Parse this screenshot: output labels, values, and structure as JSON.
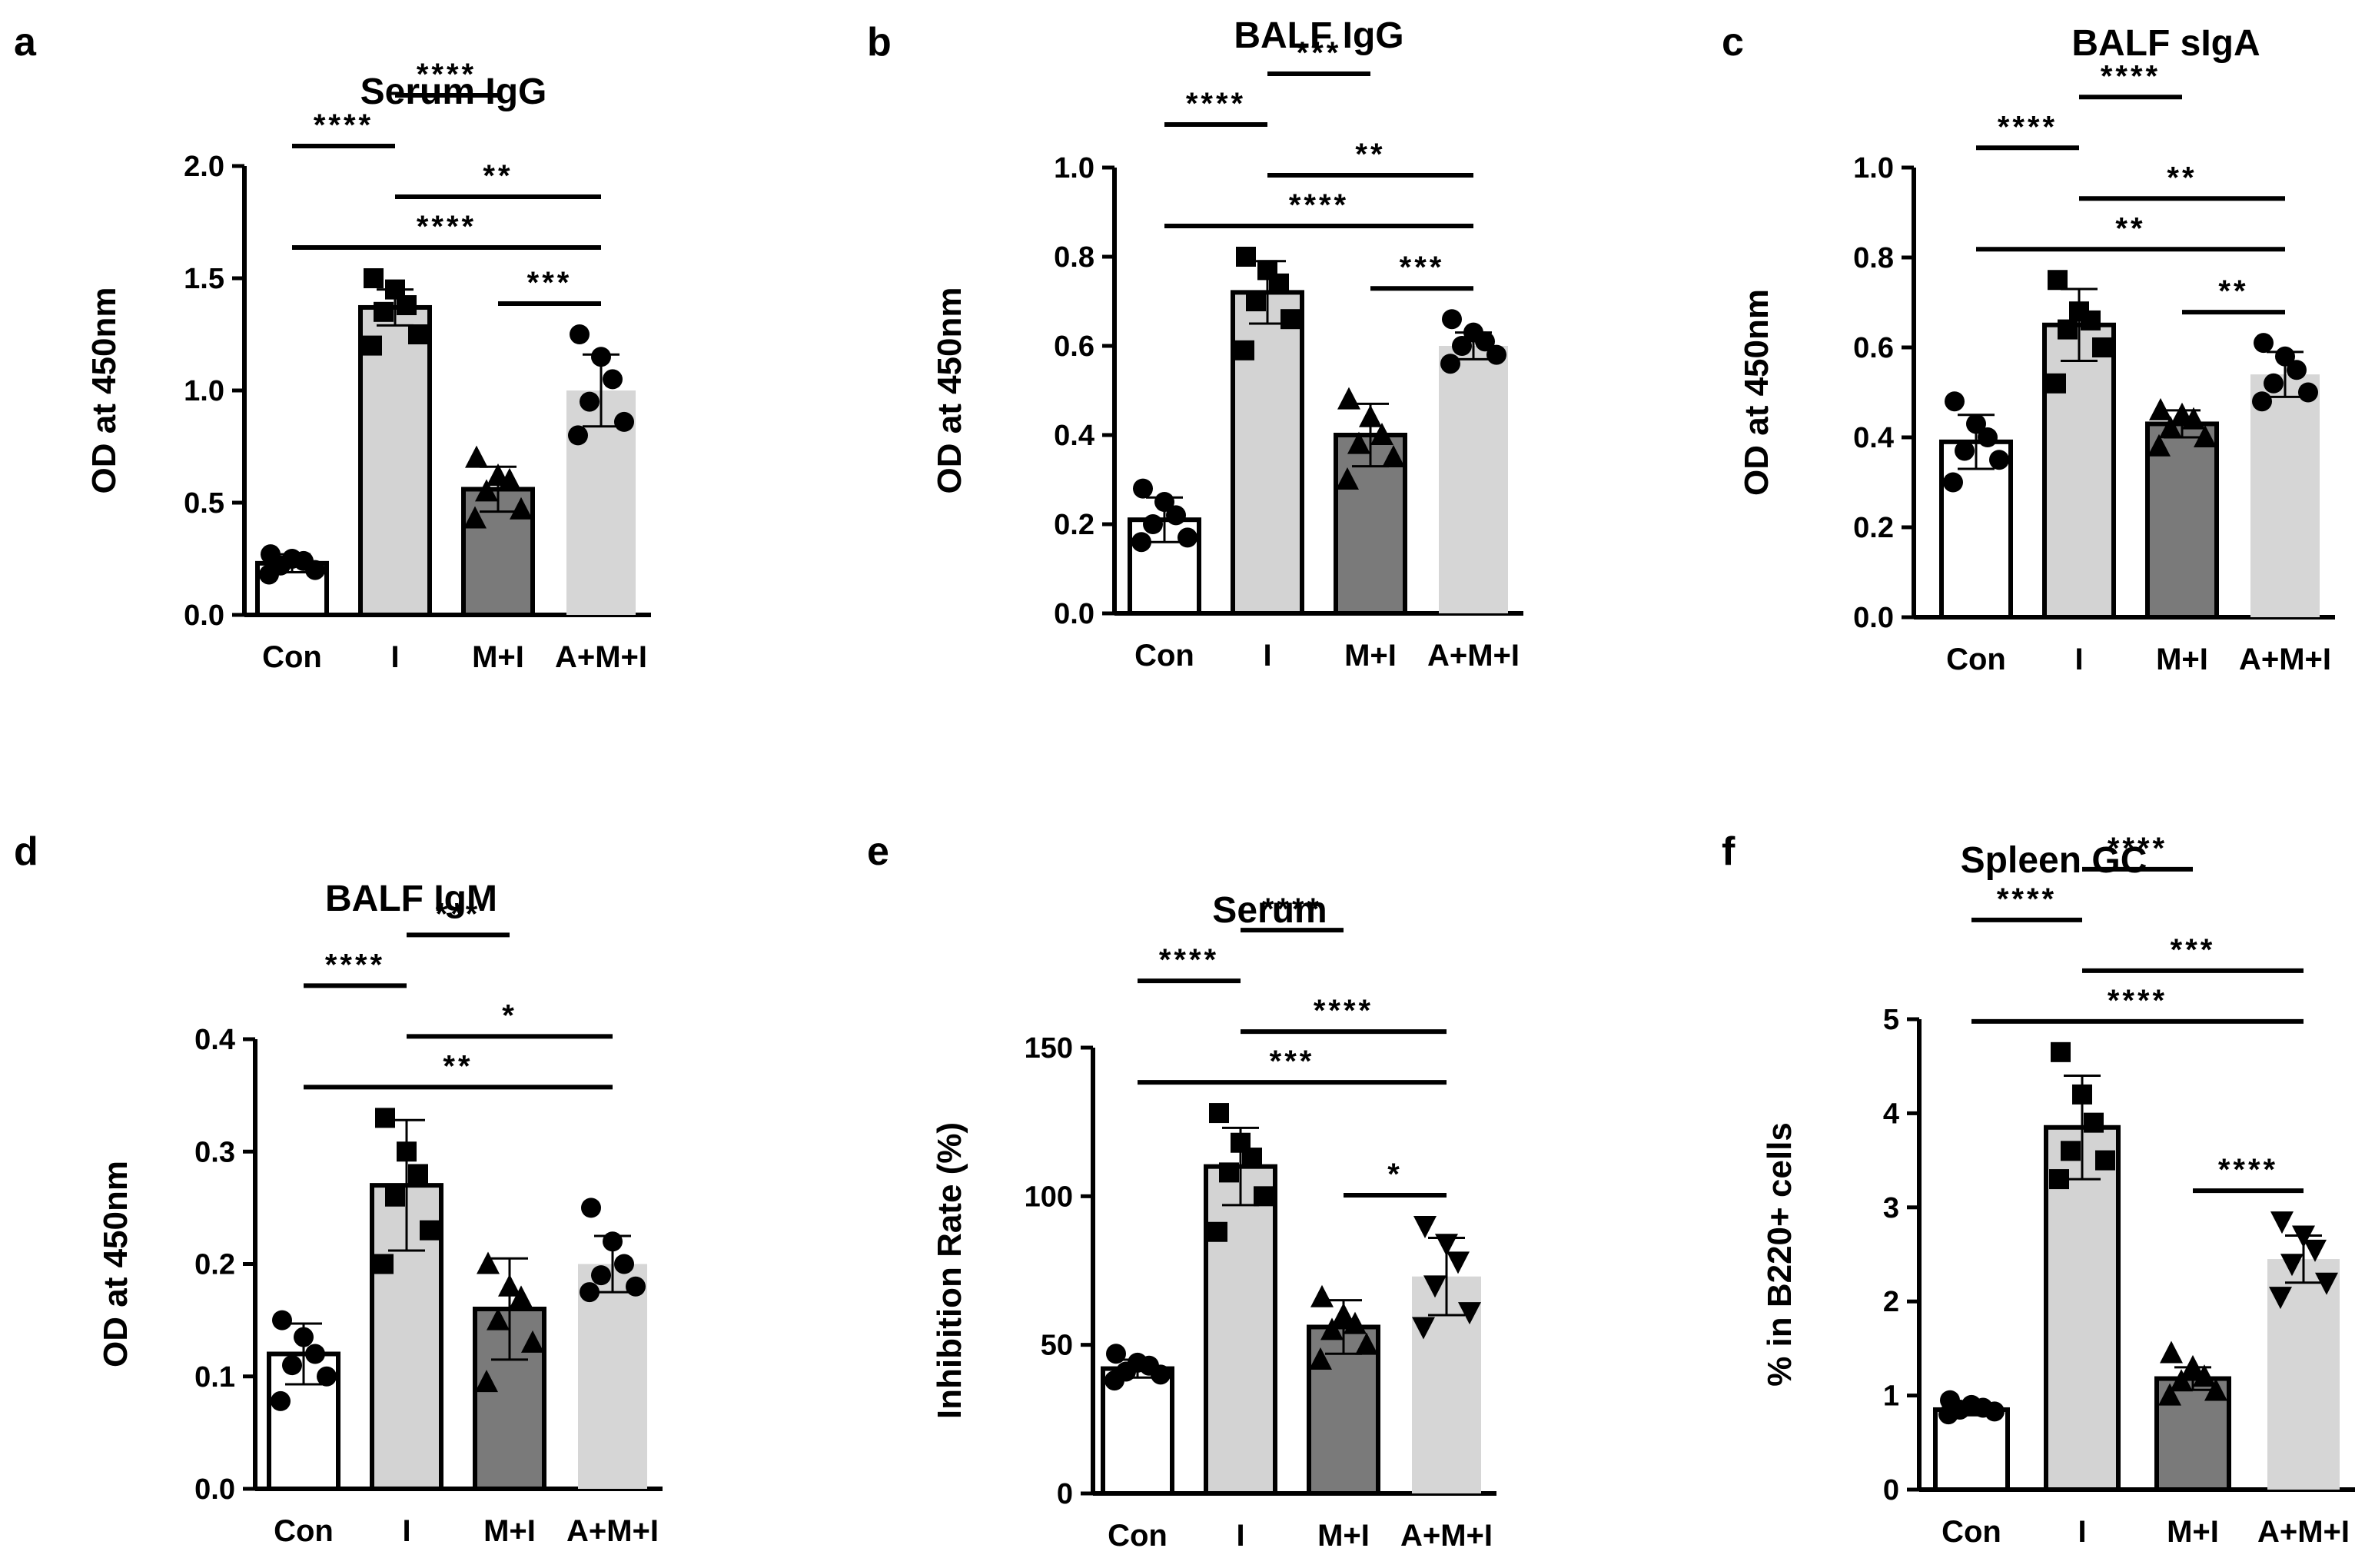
{
  "colors": {
    "con": "#ffffff",
    "i": "#d3d3d3",
    "mi": "#7a7a7a",
    "ami": "#d6d6d6",
    "stroke": "#000000"
  },
  "chart_data": [
    {
      "id": "a",
      "panel_letter": "a",
      "type": "bar",
      "title": "Serum IgG",
      "ylabel": "OD at 450nm",
      "categories": [
        "Con",
        "I",
        "M+I",
        "A+M+I"
      ],
      "ylim": [
        0,
        2.0
      ],
      "yticks": [
        0,
        0.5,
        1.0,
        1.5,
        2.0
      ],
      "ytick_labels": [
        "0.0",
        "0.5",
        "1.0",
        "1.5",
        "2.0"
      ],
      "means": [
        0.23,
        1.37,
        0.56,
        1.0
      ],
      "sd": [
        0.04,
        0.08,
        0.1,
        0.16
      ],
      "points": [
        [
          0.18,
          0.2,
          0.22,
          0.24,
          0.25,
          0.27
        ],
        [
          1.2,
          1.25,
          1.35,
          1.38,
          1.45,
          1.5
        ],
        [
          0.43,
          0.47,
          0.55,
          0.6,
          0.62,
          0.7
        ],
        [
          0.8,
          0.86,
          0.95,
          1.05,
          1.15,
          1.25
        ]
      ],
      "markers": [
        "circle",
        "square",
        "triangle",
        "circle"
      ],
      "comparisons": [
        {
          "from": 0,
          "to": 3,
          "label": "****"
        },
        {
          "from": 1,
          "to": 3,
          "label": "**"
        },
        {
          "from": 0,
          "to": 1,
          "label": "****"
        },
        {
          "from": 1,
          "to": 2,
          "label": "****"
        },
        {
          "from": 2,
          "to": 3,
          "label": "***"
        }
      ]
    },
    {
      "id": "b",
      "panel_letter": "b",
      "type": "bar",
      "title": "BALF IgG",
      "ylabel": "OD at 450nm",
      "categories": [
        "Con",
        "I",
        "M+I",
        "A+M+I"
      ],
      "ylim": [
        0,
        1.0
      ],
      "yticks": [
        0,
        0.2,
        0.4,
        0.6,
        0.8,
        1.0
      ],
      "ytick_labels": [
        "0.0",
        "0.2",
        "0.4",
        "0.6",
        "0.8",
        "1.0"
      ],
      "means": [
        0.21,
        0.72,
        0.4,
        0.6
      ],
      "sd": [
        0.05,
        0.07,
        0.07,
        0.03
      ],
      "points": [
        [
          0.16,
          0.17,
          0.2,
          0.22,
          0.25,
          0.28
        ],
        [
          0.59,
          0.66,
          0.7,
          0.74,
          0.77,
          0.8
        ],
        [
          0.3,
          0.35,
          0.38,
          0.4,
          0.44,
          0.48
        ],
        [
          0.56,
          0.58,
          0.6,
          0.61,
          0.63,
          0.66
        ]
      ],
      "markers": [
        "circle",
        "square",
        "triangle",
        "circle"
      ],
      "comparisons": [
        {
          "from": 0,
          "to": 3,
          "label": "****"
        },
        {
          "from": 1,
          "to": 3,
          "label": "**"
        },
        {
          "from": 0,
          "to": 1,
          "label": "****"
        },
        {
          "from": 1,
          "to": 2,
          "label": "***"
        },
        {
          "from": 2,
          "to": 3,
          "label": "***"
        }
      ]
    },
    {
      "id": "c",
      "panel_letter": "c",
      "type": "bar",
      "title": "BALF sIgA",
      "ylabel": "OD at 450nm",
      "categories": [
        "Con",
        "I",
        "M+I",
        "A+M+I"
      ],
      "ylim": [
        0,
        1.0
      ],
      "yticks": [
        0,
        0.2,
        0.4,
        0.6,
        0.8,
        1.0
      ],
      "ytick_labels": [
        "0.0",
        "0.2",
        "0.4",
        "0.6",
        "0.8",
        "1.0"
      ],
      "means": [
        0.39,
        0.65,
        0.43,
        0.54
      ],
      "sd": [
        0.06,
        0.08,
        0.03,
        0.05
      ],
      "points": [
        [
          0.3,
          0.35,
          0.37,
          0.4,
          0.43,
          0.48
        ],
        [
          0.52,
          0.6,
          0.64,
          0.66,
          0.68,
          0.75
        ],
        [
          0.38,
          0.4,
          0.42,
          0.44,
          0.45,
          0.46
        ],
        [
          0.48,
          0.5,
          0.52,
          0.55,
          0.58,
          0.61
        ]
      ],
      "markers": [
        "circle",
        "square",
        "triangle",
        "circle"
      ],
      "comparisons": [
        {
          "from": 0,
          "to": 3,
          "label": "**"
        },
        {
          "from": 1,
          "to": 3,
          "label": "**"
        },
        {
          "from": 0,
          "to": 1,
          "label": "****"
        },
        {
          "from": 1,
          "to": 2,
          "label": "****"
        },
        {
          "from": 2,
          "to": 3,
          "label": "**"
        }
      ]
    },
    {
      "id": "d",
      "panel_letter": "d",
      "type": "bar",
      "title": "BALF IgM",
      "ylabel": "OD at 450nm",
      "categories": [
        "Con",
        "I",
        "M+I",
        "A+M+I"
      ],
      "ylim": [
        0,
        0.4
      ],
      "yticks": [
        0,
        0.1,
        0.2,
        0.3,
        0.4
      ],
      "ytick_labels": [
        "0.0",
        "0.1",
        "0.2",
        "0.3",
        "0.4"
      ],
      "means": [
        0.12,
        0.27,
        0.16,
        0.2
      ],
      "sd": [
        0.027,
        0.058,
        0.045,
        0.025
      ],
      "points": [
        [
          0.078,
          0.1,
          0.11,
          0.12,
          0.135,
          0.15
        ],
        [
          0.2,
          0.23,
          0.26,
          0.28,
          0.3,
          0.33
        ],
        [
          0.095,
          0.13,
          0.15,
          0.17,
          0.18,
          0.2
        ],
        [
          0.175,
          0.18,
          0.19,
          0.2,
          0.22,
          0.25
        ]
      ],
      "markers": [
        "circle",
        "square",
        "triangle",
        "circle"
      ],
      "comparisons": [
        {
          "from": 0,
          "to": 3,
          "label": "**"
        },
        {
          "from": 1,
          "to": 3,
          "label": "*"
        },
        {
          "from": 0,
          "to": 1,
          "label": "****"
        },
        {
          "from": 1,
          "to": 2,
          "label": "***"
        }
      ]
    },
    {
      "id": "e",
      "panel_letter": "e",
      "type": "bar",
      "title": "Serum",
      "ylabel": "Inhibition Rate (%)",
      "categories": [
        "Con",
        "I",
        "M+I",
        "A+M+I"
      ],
      "ylim": [
        0,
        150
      ],
      "yticks": [
        0,
        50,
        100,
        150
      ],
      "ytick_labels": [
        "0",
        "50",
        "100",
        "150"
      ],
      "means": [
        42,
        110,
        56,
        73
      ],
      "sd": [
        3,
        13,
        9,
        13
      ],
      "points": [
        [
          38,
          40,
          41,
          43,
          44,
          47
        ],
        [
          88,
          100,
          108,
          113,
          118,
          128
        ],
        [
          45,
          50,
          55,
          57,
          60,
          66
        ],
        [
          56,
          61,
          70,
          78,
          84,
          90
        ]
      ],
      "markers": [
        "circle",
        "square",
        "triangle",
        "inv-triangle"
      ],
      "comparisons": [
        {
          "from": 0,
          "to": 3,
          "label": "***"
        },
        {
          "from": 1,
          "to": 3,
          "label": "****"
        },
        {
          "from": 0,
          "to": 1,
          "label": "****"
        },
        {
          "from": 1,
          "to": 2,
          "label": "****"
        },
        {
          "from": 2,
          "to": 3,
          "label": "*"
        }
      ]
    },
    {
      "id": "f",
      "panel_letter": "f",
      "type": "bar",
      "title": "Spleen GC",
      "ylabel": "% in B220+ cells",
      "categories": [
        "Con",
        "I",
        "M+I",
        "A+M+I"
      ],
      "ylim": [
        0,
        5
      ],
      "yticks": [
        0,
        1,
        2,
        3,
        4,
        5
      ],
      "ytick_labels": [
        "0",
        "1",
        "2",
        "3",
        "4",
        "5"
      ],
      "means": [
        0.85,
        3.85,
        1.18,
        2.45
      ],
      "sd": [
        0.06,
        0.55,
        0.12,
        0.25
      ],
      "points": [
        [
          0.8,
          0.83,
          0.85,
          0.87,
          0.9,
          0.95
        ],
        [
          3.3,
          3.5,
          3.6,
          3.9,
          4.2,
          4.65
        ],
        [
          1.0,
          1.05,
          1.15,
          1.2,
          1.3,
          1.45
        ],
        [
          2.05,
          2.2,
          2.4,
          2.55,
          2.7,
          2.85
        ]
      ],
      "markers": [
        "circle",
        "square",
        "triangle",
        "inv-triangle"
      ],
      "comparisons": [
        {
          "from": 0,
          "to": 3,
          "label": "****"
        },
        {
          "from": 1,
          "to": 3,
          "label": "***"
        },
        {
          "from": 0,
          "to": 1,
          "label": "****"
        },
        {
          "from": 1,
          "to": 2,
          "label": "****"
        },
        {
          "from": 2,
          "to": 3,
          "label": "****"
        }
      ]
    }
  ]
}
